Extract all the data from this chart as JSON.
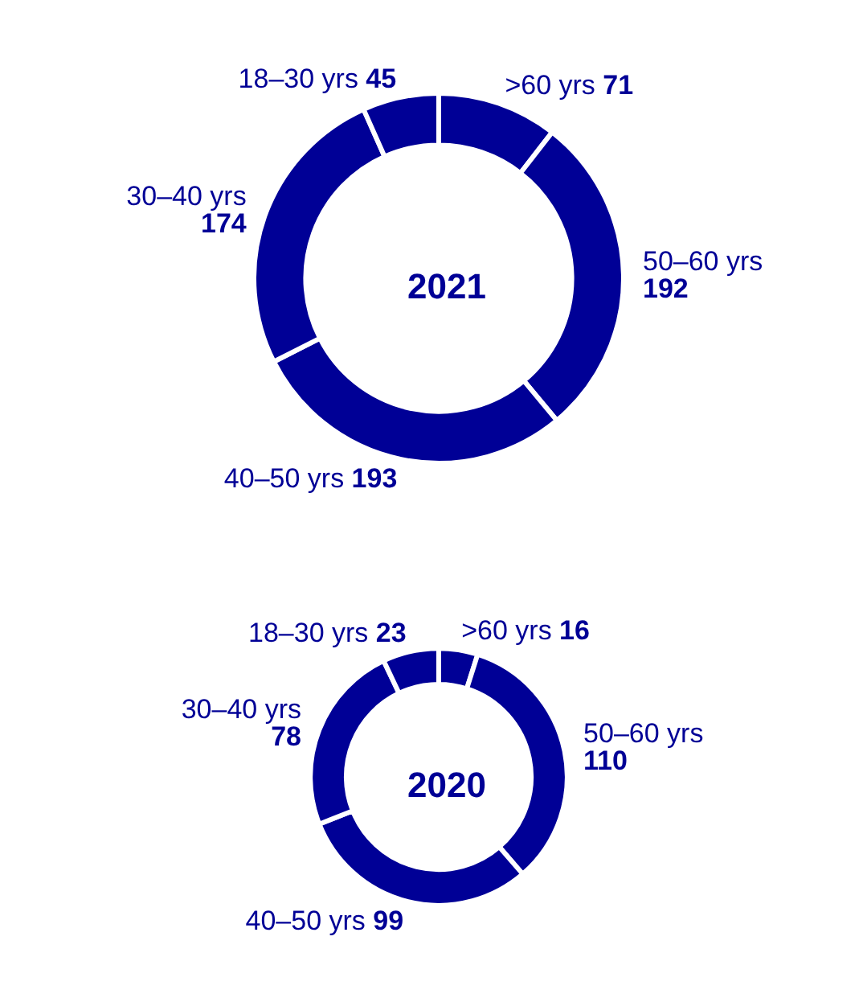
{
  "chart_data": [
    {
      "type": "donut",
      "title": "2021",
      "categories": [
        ">60 yrs",
        "50–60 yrs",
        "40–50 yrs",
        "30–40 yrs",
        "18–30 yrs"
      ],
      "values": [
        71,
        192,
        193,
        174,
        45
      ],
      "colors": [
        "#000096",
        "#000096",
        "#000096",
        "#000096",
        "#000096"
      ],
      "data_labels": true,
      "legend": false
    },
    {
      "type": "donut",
      "title": "2020",
      "categories": [
        ">60 yrs",
        "50–60 yrs",
        "40–50 yrs",
        "30–40 yrs",
        "18–30 yrs"
      ],
      "values": [
        16,
        110,
        99,
        78,
        23
      ],
      "colors": [
        "#000096",
        "#000096",
        "#000096",
        "#000096",
        "#000096"
      ],
      "data_labels": true,
      "legend": false
    }
  ]
}
